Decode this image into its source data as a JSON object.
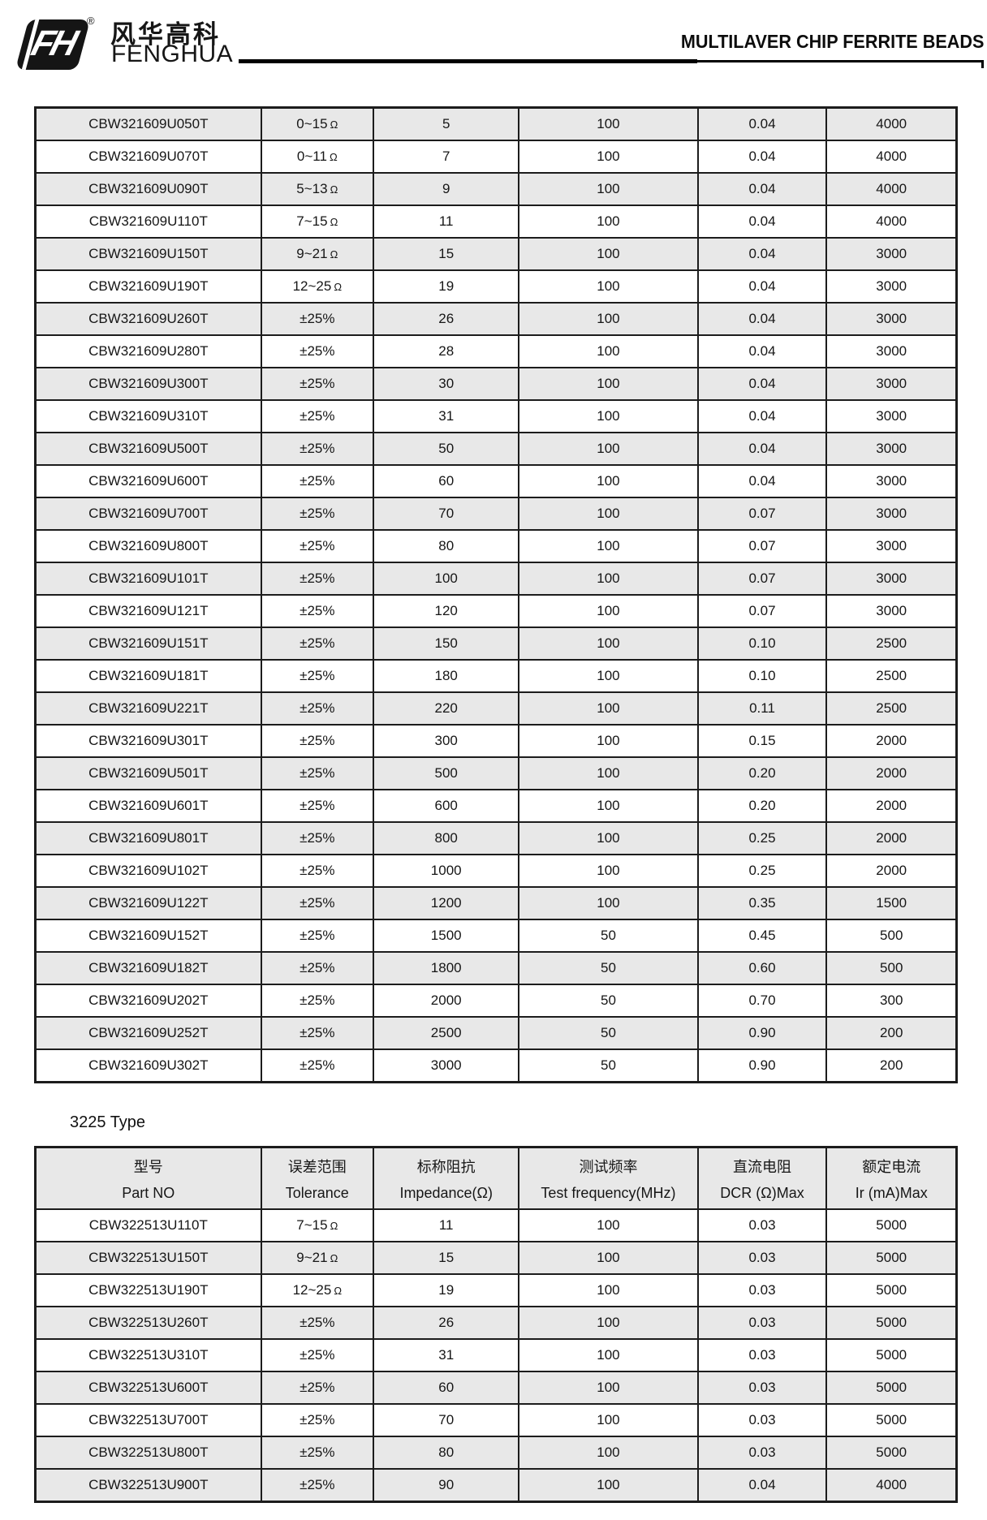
{
  "header": {
    "monogram": "FH",
    "registered_mark": "®",
    "company_cn": "风华高科",
    "company_en": "FENGHUA",
    "title": "MULTILAVER CHIP FERRITE BEADS"
  },
  "section2_label": "3225 Type",
  "columns": [
    {
      "zh": "型号",
      "en": "Part NO"
    },
    {
      "zh": "误差范围",
      "en": "Tolerance"
    },
    {
      "zh": "标称阻抗",
      "en": "Impedance(Ω)"
    },
    {
      "zh": "测试频率",
      "en": "Test frequency(MHz)"
    },
    {
      "zh": "直流电阻",
      "en": "DCR (Ω)Max"
    },
    {
      "zh": "额定电流",
      "en": "Ir (mA)Max"
    }
  ],
  "table1": {
    "rows": [
      {
        "shaded": true,
        "cells": [
          "CBW321609U050T",
          "0~15Ω",
          "5",
          "100",
          "0.04",
          "4000"
        ]
      },
      {
        "shaded": false,
        "cells": [
          "CBW321609U070T",
          "0~11Ω",
          "7",
          "100",
          "0.04",
          "4000"
        ]
      },
      {
        "shaded": true,
        "cells": [
          "CBW321609U090T",
          "5~13Ω",
          "9",
          "100",
          "0.04",
          "4000"
        ]
      },
      {
        "shaded": false,
        "cells": [
          "CBW321609U110T",
          "7~15Ω",
          "11",
          "100",
          "0.04",
          "4000"
        ]
      },
      {
        "shaded": true,
        "cells": [
          "CBW321609U150T",
          "9~21Ω",
          "15",
          "100",
          "0.04",
          "3000"
        ]
      },
      {
        "shaded": false,
        "cells": [
          "CBW321609U190T",
          "12~25Ω",
          "19",
          "100",
          "0.04",
          "3000"
        ]
      },
      {
        "shaded": true,
        "cells": [
          "CBW321609U260T",
          "±25%",
          "26",
          "100",
          "0.04",
          "3000"
        ]
      },
      {
        "shaded": false,
        "cells": [
          "CBW321609U280T",
          "±25%",
          "28",
          "100",
          "0.04",
          "3000"
        ]
      },
      {
        "shaded": true,
        "cells": [
          "CBW321609U300T",
          "±25%",
          "30",
          "100",
          "0.04",
          "3000"
        ]
      },
      {
        "shaded": false,
        "cells": [
          "CBW321609U310T",
          "±25%",
          "31",
          "100",
          "0.04",
          "3000"
        ]
      },
      {
        "shaded": true,
        "cells": [
          "CBW321609U500T",
          "±25%",
          "50",
          "100",
          "0.04",
          "3000"
        ]
      },
      {
        "shaded": false,
        "cells": [
          "CBW321609U600T",
          "±25%",
          "60",
          "100",
          "0.04",
          "3000"
        ]
      },
      {
        "shaded": true,
        "cells": [
          "CBW321609U700T",
          "±25%",
          "70",
          "100",
          "0.07",
          "3000"
        ]
      },
      {
        "shaded": false,
        "cells": [
          "CBW321609U800T",
          "±25%",
          "80",
          "100",
          "0.07",
          "3000"
        ]
      },
      {
        "shaded": true,
        "cells": [
          "CBW321609U101T",
          "±25%",
          "100",
          "100",
          "0.07",
          "3000"
        ]
      },
      {
        "shaded": false,
        "cells": [
          "CBW321609U121T",
          "±25%",
          "120",
          "100",
          "0.07",
          "3000"
        ]
      },
      {
        "shaded": true,
        "cells": [
          "CBW321609U151T",
          "±25%",
          "150",
          "100",
          "0.10",
          "2500"
        ]
      },
      {
        "shaded": false,
        "cells": [
          "CBW321609U181T",
          "±25%",
          "180",
          "100",
          "0.10",
          "2500"
        ]
      },
      {
        "shaded": true,
        "cells": [
          "CBW321609U221T",
          "±25%",
          "220",
          "100",
          "0.11",
          "2500"
        ]
      },
      {
        "shaded": false,
        "cells": [
          "CBW321609U301T",
          "±25%",
          "300",
          "100",
          "0.15",
          "2000"
        ]
      },
      {
        "shaded": true,
        "cells": [
          "CBW321609U501T",
          "±25%",
          "500",
          "100",
          "0.20",
          "2000"
        ]
      },
      {
        "shaded": false,
        "cells": [
          "CBW321609U601T",
          "±25%",
          "600",
          "100",
          "0.20",
          "2000"
        ]
      },
      {
        "shaded": true,
        "cells": [
          "CBW321609U801T",
          "±25%",
          "800",
          "100",
          "0.25",
          "2000"
        ]
      },
      {
        "shaded": false,
        "cells": [
          "CBW321609U102T",
          "±25%",
          "1000",
          "100",
          "0.25",
          "2000"
        ]
      },
      {
        "shaded": true,
        "cells": [
          "CBW321609U122T",
          "±25%",
          "1200",
          "100",
          "0.35",
          "1500"
        ]
      },
      {
        "shaded": false,
        "cells": [
          "CBW321609U152T",
          "±25%",
          "1500",
          "50",
          "0.45",
          "500"
        ]
      },
      {
        "shaded": true,
        "cells": [
          "CBW321609U182T",
          "±25%",
          "1800",
          "50",
          "0.60",
          "500"
        ]
      },
      {
        "shaded": false,
        "cells": [
          "CBW321609U202T",
          "±25%",
          "2000",
          "50",
          "0.70",
          "300"
        ]
      },
      {
        "shaded": true,
        "cells": [
          "CBW321609U252T",
          "±25%",
          "2500",
          "50",
          "0.90",
          "200"
        ]
      },
      {
        "shaded": false,
        "cells": [
          "CBW321609U302T",
          "±25%",
          "3000",
          "50",
          "0.90",
          "200"
        ]
      }
    ]
  },
  "table2": {
    "rows": [
      {
        "shaded": false,
        "cells": [
          "CBW322513U110T",
          "7~15Ω",
          "11",
          "100",
          "0.03",
          "5000"
        ]
      },
      {
        "shaded": true,
        "cells": [
          "CBW322513U150T",
          "9~21Ω",
          "15",
          "100",
          "0.03",
          "5000"
        ]
      },
      {
        "shaded": false,
        "cells": [
          "CBW322513U190T",
          "12~25Ω",
          "19",
          "100",
          "0.03",
          "5000"
        ]
      },
      {
        "shaded": true,
        "cells": [
          "CBW322513U260T",
          "±25%",
          "26",
          "100",
          "0.03",
          "5000"
        ]
      },
      {
        "shaded": false,
        "cells": [
          "CBW322513U310T",
          "±25%",
          "31",
          "100",
          "0.03",
          "5000"
        ]
      },
      {
        "shaded": true,
        "cells": [
          "CBW322513U600T",
          "±25%",
          "60",
          "100",
          "0.03",
          "5000"
        ]
      },
      {
        "shaded": false,
        "cells": [
          "CBW322513U700T",
          "±25%",
          "70",
          "100",
          "0.03",
          "5000"
        ]
      },
      {
        "shaded": true,
        "cells": [
          "CBW322513U800T",
          "±25%",
          "80",
          "100",
          "0.03",
          "5000"
        ]
      },
      {
        "shaded": true,
        "cells": [
          "CBW322513U900T",
          "±25%",
          "90",
          "100",
          "0.04",
          "4000"
        ]
      }
    ]
  },
  "colors": {
    "row_shaded": "#e8e8e8",
    "border": "#1c1c1c",
    "text": "#161616"
  }
}
